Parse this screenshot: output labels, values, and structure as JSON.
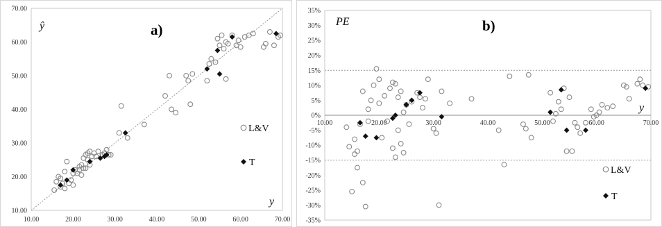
{
  "chart_data": [
    {
      "type": "scatter",
      "panel_label": "a)",
      "xlabel": "y",
      "ylabel": "ŷ",
      "xlim": [
        10,
        70
      ],
      "ylim": [
        10,
        70
      ],
      "x_ticks": [
        "10.00",
        "20.00",
        "30.00",
        "40.00",
        "50.00",
        "60.00",
        "70.00"
      ],
      "y_ticks": [
        "10.00",
        "20.00",
        "30.00",
        "40.00",
        "50.00",
        "60.00",
        "70.00"
      ],
      "grid": false,
      "legend_position": "right",
      "reference_line": "y = x (dotted)",
      "series": [
        {
          "name": "L&V",
          "marker": "open-circle",
          "x": [
            15.5,
            16.0,
            16.5,
            17.0,
            17.0,
            17.5,
            18.0,
            18.0,
            18.5,
            19.0,
            19.5,
            20.0,
            20.0,
            20.5,
            21.0,
            21.5,
            21.5,
            22.0,
            22.0,
            22.5,
            22.5,
            23.0,
            23.0,
            23.5,
            23.5,
            24.0,
            24.0,
            24.5,
            25.0,
            25.5,
            26.0,
            27.0,
            27.5,
            28.0,
            28.5,
            29.0,
            31.0,
            31.5,
            33.0,
            37.0,
            42.0,
            43.0,
            43.5,
            44.5,
            47.0,
            47.5,
            48.0,
            48.5,
            52.0,
            52.5,
            53.0,
            54.0,
            54.5,
            55.0,
            55.5,
            56.0,
            56.5,
            57.0,
            58.0,
            59.0,
            59.5,
            60.0,
            61.0,
            62.0,
            63.0,
            65.5,
            66.0,
            67.0,
            68.0,
            69.0,
            69.5,
            56.5
          ],
          "y": [
            16.0,
            18.5,
            20.0,
            17.0,
            19.5,
            18.0,
            16.5,
            21.5,
            24.5,
            18.0,
            19.0,
            17.5,
            21.0,
            22.0,
            21.0,
            22.0,
            23.0,
            20.5,
            23.5,
            22.5,
            25.5,
            22.5,
            26.5,
            25.0,
            27.0,
            23.5,
            27.5,
            26.0,
            27.0,
            26.0,
            27.5,
            26.5,
            27.0,
            28.0,
            26.5,
            26.5,
            33.0,
            41.0,
            31.5,
            35.5,
            44.0,
            50.0,
            40.0,
            39.0,
            50.0,
            48.5,
            41.5,
            50.5,
            48.5,
            53.5,
            55.0,
            54.0,
            61.0,
            59.0,
            62.0,
            58.0,
            60.0,
            59.5,
            62.0,
            59.0,
            60.5,
            58.5,
            61.5,
            62.0,
            62.5,
            58.5,
            59.5,
            63.0,
            59.0,
            61.5,
            62.0,
            49.0
          ]
        },
        {
          "name": "T",
          "marker": "filled-diamond",
          "x": [
            17.0,
            18.5,
            20.0,
            24.0,
            26.5,
            27.5,
            28.0,
            32.5,
            52.0,
            54.5,
            55.0,
            58.0,
            68.5
          ],
          "y": [
            17.5,
            19.0,
            22.0,
            24.5,
            25.5,
            26.0,
            26.5,
            33.0,
            52.0,
            57.5,
            50.5,
            61.5,
            62.5
          ]
        }
      ]
    },
    {
      "type": "scatter",
      "panel_label": "b)",
      "xlabel": "y",
      "ylabel": "PE",
      "xlim": [
        10,
        70
      ],
      "ylim": [
        -35,
        35
      ],
      "x_ticks": [
        "10.00",
        "20.00",
        "30.00",
        "40.00",
        "50.00",
        "60.00",
        "70.00"
      ],
      "y_ticks": [
        "35%",
        "30%",
        "25%",
        "20%",
        "15%",
        "10%",
        "5%",
        "0%",
        "-5%",
        "-10%",
        "-15%",
        "-20%",
        "-25%",
        "-30%",
        "-35%"
      ],
      "grid": false,
      "legend_position": "bottom-right",
      "reference_lines": [
        15,
        -15
      ],
      "series": [
        {
          "name": "L&V",
          "marker": "open-circle",
          "x": [
            14.0,
            14.5,
            15.0,
            15.5,
            15.5,
            16.0,
            16.5,
            17.0,
            17.5,
            18.0,
            18.0,
            18.5,
            19.0,
            19.5,
            20.0,
            20.0,
            20.5,
            21.0,
            21.5,
            22.0,
            22.5,
            22.5,
            23.0,
            23.0,
            23.5,
            23.5,
            24.0,
            24.0,
            24.5,
            25.0,
            25.5,
            26.0,
            27.0,
            27.5,
            28.0,
            28.5,
            29.0,
            30.0,
            30.5,
            31.0,
            31.5,
            33.0,
            37.0,
            42.0,
            43.0,
            44.0,
            46.5,
            47.0,
            47.5,
            48.0,
            51.5,
            52.0,
            52.5,
            53.0,
            53.5,
            54.0,
            54.5,
            55.0,
            55.5,
            56.0,
            56.5,
            57.0,
            58.0,
            59.0,
            59.5,
            60.0,
            60.5,
            61.0,
            62.0,
            63.0,
            65.0,
            65.5,
            66.0,
            67.5,
            68.0,
            68.5,
            69.5,
            17.0,
            24.5,
            16.0
          ],
          "y": [
            -4.0,
            -10.5,
            -25.5,
            -13.0,
            -8.0,
            -12.0,
            -3.0,
            8.0,
            -30.5,
            2.0,
            -2.0,
            5.0,
            10.0,
            15.5,
            12.0,
            4.0,
            -7.5,
            6.5,
            -2.0,
            9.0,
            11.0,
            -11.0,
            10.5,
            -14.0,
            6.0,
            -5.0,
            8.0,
            -9.5,
            1.0,
            3.5,
            -3.0,
            4.5,
            7.5,
            6.0,
            2.5,
            5.5,
            12.0,
            -4.5,
            -6.0,
            -30.0,
            8.0,
            4.0,
            5.5,
            -5.0,
            -16.5,
            13.0,
            -3.0,
            -4.5,
            13.5,
            -7.5,
            7.5,
            -2.0,
            0.5,
            4.5,
            2.0,
            9.0,
            -12.0,
            6.0,
            -12.0,
            -2.5,
            -4.0,
            -6.0,
            -2.5,
            2.0,
            -0.5,
            0.0,
            1.0,
            3.5,
            2.5,
            3.0,
            10.0,
            9.5,
            5.5,
            10.5,
            12.0,
            10.0,
            9.5,
            -22.5,
            -12.5,
            -17.5
          ]
        },
        {
          "name": "T",
          "marker": "filled-diamond",
          "x": [
            16.5,
            17.5,
            19.5,
            22.5,
            23.0,
            25.0,
            26.0,
            27.5,
            31.5,
            51.5,
            53.5,
            54.5,
            58.0,
            69.0
          ],
          "y": [
            -2.5,
            -7.0,
            -7.5,
            -1.0,
            0.0,
            3.5,
            5.0,
            7.5,
            -0.5,
            1.0,
            8.5,
            -5.0,
            -5.0,
            9.0
          ]
        }
      ]
    }
  ],
  "colors": {
    "marker_open": "#8a8a8a",
    "marker_filled": "#111111",
    "reference_line": "#9a9a9a",
    "frame": "#d0d0d0",
    "text": "#333333"
  }
}
